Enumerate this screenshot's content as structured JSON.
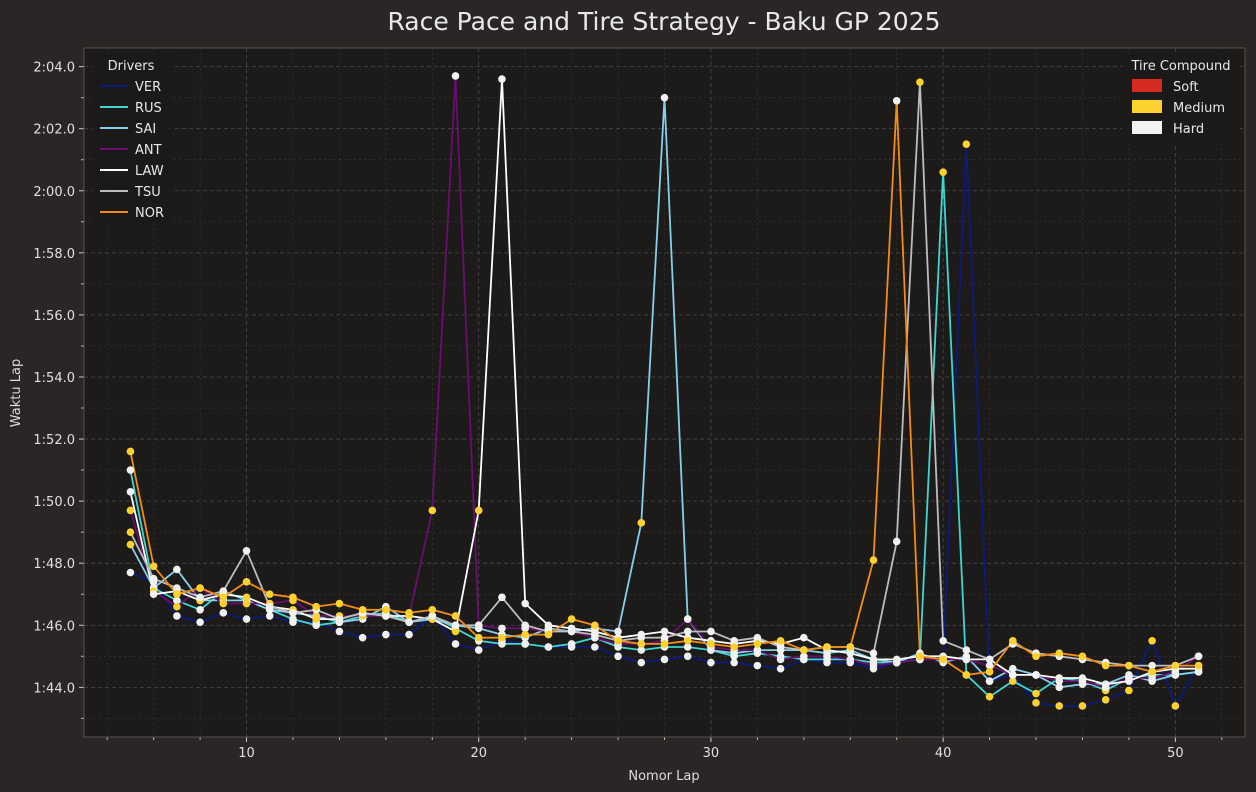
{
  "chart_data": {
    "type": "line",
    "title": "Race Pace and Tire Strategy - Baku GP 2025",
    "xlabel": "Nomor Lap",
    "ylabel": "Waktu Lap",
    "xlim": [
      3,
      53
    ],
    "ylim": [
      102.4,
      124.6
    ],
    "x_ticks": [
      10,
      20,
      30,
      40,
      50
    ],
    "y_ticks": [
      104,
      106,
      108,
      110,
      112,
      114,
      116,
      118,
      120,
      122,
      124
    ],
    "y_tick_labels": [
      "1:44.0",
      "1:46.0",
      "1:48.0",
      "1:50.0",
      "1:52.0",
      "1:54.0",
      "1:56.0",
      "1:58.0",
      "2:00.0",
      "2:02.0",
      "2:04.0"
    ],
    "grid": true,
    "legend_drivers": {
      "title": "Drivers",
      "position": "top-left"
    },
    "legend_tires": {
      "title": "Tire Compound",
      "position": "top-right"
    },
    "tire_compounds": [
      {
        "name": "Soft",
        "color": "#d62b20"
      },
      {
        "name": "Medium",
        "color": "#fdd12e"
      },
      {
        "name": "Hard",
        "color": "#f2f2f2"
      }
    ],
    "x": [
      5,
      6,
      7,
      8,
      9,
      10,
      11,
      12,
      13,
      14,
      15,
      16,
      17,
      18,
      19,
      20,
      21,
      22,
      23,
      24,
      25,
      26,
      27,
      28,
      29,
      30,
      31,
      32,
      33,
      34,
      35,
      36,
      37,
      38,
      39,
      40,
      41,
      42,
      43,
      44,
      45,
      46,
      47,
      48,
      49,
      50,
      51
    ],
    "series": [
      {
        "name": "VER",
        "color": "#0b1a7c",
        "values": [
          107.7,
          107.4,
          106.3,
          106.1,
          106.4,
          106.2,
          106.3,
          106.1,
          106.1,
          105.8,
          105.6,
          105.7,
          105.7,
          106.3,
          105.4,
          105.2,
          105.5,
          105.4,
          105.3,
          105.3,
          105.3,
          105.0,
          104.8,
          104.9,
          105.0,
          104.8,
          104.8,
          104.7,
          104.6,
          104.9,
          104.8,
          104.8,
          104.6,
          104.8,
          104.9,
          104.9,
          121.5,
          104.2,
          104.4,
          103.5,
          103.4,
          103.4,
          103.6,
          103.9,
          105.5,
          103.4,
          104.7
        ],
        "tires": [
          "H",
          "H",
          "H",
          "H",
          "H",
          "H",
          "H",
          "H",
          "H",
          "H",
          "H",
          "H",
          "H",
          "H",
          "H",
          "H",
          "H",
          "H",
          "H",
          "H",
          "H",
          "H",
          "H",
          "H",
          "H",
          "H",
          "H",
          "H",
          "H",
          "H",
          "H",
          "H",
          "H",
          "H",
          "H",
          "H",
          "M",
          "H",
          "M",
          "M",
          "M",
          "M",
          "M",
          "M",
          "M",
          "M",
          "M"
        ]
      },
      {
        "name": "RUS",
        "color": "#40d6cf",
        "values": [
          111.0,
          107.2,
          106.8,
          106.5,
          107.1,
          106.8,
          106.5,
          106.2,
          106.0,
          106.1,
          106.3,
          106.4,
          106.1,
          106.3,
          105.9,
          105.5,
          105.4,
          105.4,
          105.3,
          105.4,
          105.6,
          105.3,
          105.2,
          105.3,
          105.3,
          105.2,
          105.0,
          105.1,
          105.0,
          104.9,
          104.9,
          104.9,
          104.8,
          104.8,
          104.9,
          120.6,
          104.4,
          103.7,
          104.2,
          103.8,
          104.3,
          104.2,
          103.9,
          104.3,
          104.4,
          104.4,
          104.5
        ],
        "tires": [
          "H",
          "H",
          "H",
          "H",
          "H",
          "H",
          "H",
          "H",
          "H",
          "H",
          "H",
          "H",
          "H",
          "H",
          "H",
          "H",
          "H",
          "H",
          "H",
          "H",
          "H",
          "H",
          "H",
          "H",
          "H",
          "H",
          "H",
          "H",
          "H",
          "H",
          "H",
          "H",
          "H",
          "H",
          "H",
          "M",
          "M",
          "M",
          "M",
          "M",
          "M",
          "M",
          "M",
          "H",
          "H",
          "H",
          "H"
        ]
      },
      {
        "name": "SAI",
        "color": "#87ceeb",
        "values": [
          108.6,
          107.2,
          107.8,
          106.8,
          106.8,
          106.8,
          106.5,
          106.4,
          106.3,
          106.1,
          106.2,
          106.6,
          106.1,
          106.2,
          106.0,
          105.9,
          105.7,
          105.6,
          105.9,
          105.8,
          105.9,
          105.8,
          109.3,
          123.0,
          106.2,
          105.2,
          105.1,
          105.2,
          105.2,
          105.2,
          105.1,
          105.2,
          104.9,
          104.8,
          105.1,
          104.8,
          105.0,
          104.2,
          104.6,
          104.4,
          104.0,
          104.1,
          104.1,
          104.4,
          104.2,
          104.4,
          104.5
        ],
        "tires": [
          "M",
          "H",
          "H",
          "H",
          "H",
          "H",
          "H",
          "H",
          "H",
          "H",
          "H",
          "H",
          "H",
          "H",
          "H",
          "H",
          "H",
          "H",
          "H",
          "H",
          "H",
          "H",
          "M",
          "H",
          "H",
          "H",
          "H",
          "H",
          "H",
          "H",
          "H",
          "H",
          "H",
          "H",
          "H",
          "H",
          "H",
          "H",
          "H",
          "H",
          "H",
          "H",
          "H",
          "H",
          "H",
          "H",
          "H"
        ]
      },
      {
        "name": "ANT",
        "color": "#6a0e6f",
        "values": [
          109.7,
          107.1,
          106.6,
          107.2,
          106.7,
          106.7,
          106.7,
          106.8,
          106.3,
          106.3,
          106.3,
          106.3,
          106.3,
          109.7,
          123.7,
          106.0,
          105.9,
          105.9,
          105.8,
          105.8,
          105.6,
          105.4,
          105.4,
          105.5,
          106.2,
          105.3,
          105.2,
          105.2,
          104.9,
          105.0,
          105.0,
          104.9,
          104.7,
          104.8,
          104.9,
          104.9,
          104.9,
          104.7,
          104.4,
          104.4,
          104.2,
          104.2,
          104.0,
          104.3,
          104.3,
          104.5,
          105.0
        ],
        "tires": [
          "M",
          "M",
          "M",
          "M",
          "M",
          "M",
          "M",
          "M",
          "M",
          "M",
          "M",
          "M",
          "M",
          "M",
          "H",
          "H",
          "H",
          "H",
          "H",
          "H",
          "H",
          "H",
          "H",
          "H",
          "H",
          "H",
          "H",
          "H",
          "H",
          "H",
          "H",
          "H",
          "H",
          "H",
          "H",
          "H",
          "H",
          "H",
          "H",
          "H",
          "H",
          "H",
          "H",
          "H",
          "H",
          "H",
          "H"
        ]
      },
      {
        "name": "LAW",
        "color": "#ffffff",
        "values": [
          110.3,
          107.0,
          107.1,
          106.8,
          107.0,
          106.9,
          106.6,
          106.5,
          106.2,
          106.2,
          106.4,
          106.3,
          106.3,
          106.2,
          105.8,
          109.7,
          123.6,
          106.7,
          106.0,
          105.9,
          105.8,
          105.6,
          105.7,
          105.8,
          105.6,
          105.5,
          105.4,
          105.5,
          105.4,
          105.6,
          105.2,
          105.1,
          104.9,
          104.9,
          105.0,
          105.0,
          104.9,
          104.9,
          104.4,
          104.4,
          104.3,
          104.3,
          104.1,
          104.2,
          104.5,
          104.6,
          104.6
        ],
        "tires": [
          "H",
          "H",
          "M",
          "M",
          "M",
          "M",
          "M",
          "M",
          "M",
          "M",
          "M",
          "M",
          "M",
          "M",
          "M",
          "M",
          "H",
          "H",
          "H",
          "H",
          "H",
          "H",
          "H",
          "H",
          "H",
          "H",
          "H",
          "H",
          "H",
          "H",
          "H",
          "H",
          "H",
          "H",
          "H",
          "H",
          "H",
          "H",
          "H",
          "H",
          "H",
          "H",
          "H",
          "H",
          "H",
          "H",
          "H"
        ]
      },
      {
        "name": "TSU",
        "color": "#bdbdbd",
        "values": [
          109.0,
          107.5,
          107.2,
          106.9,
          107.1,
          108.4,
          106.6,
          106.4,
          106.5,
          106.2,
          106.4,
          106.3,
          106.1,
          106.3,
          106.0,
          106.0,
          106.9,
          106.0,
          105.8,
          105.8,
          105.7,
          105.5,
          105.6,
          105.6,
          105.8,
          105.8,
          105.5,
          105.6,
          105.3,
          105.2,
          105.3,
          105.3,
          105.1,
          108.7,
          123.5,
          105.5,
          105.2,
          104.9,
          105.4,
          105.1,
          105.0,
          104.9,
          104.8,
          104.7,
          104.7,
          104.7,
          105.0
        ],
        "tires": [
          "M",
          "H",
          "H",
          "H",
          "H",
          "H",
          "H",
          "H",
          "H",
          "H",
          "H",
          "H",
          "H",
          "H",
          "H",
          "H",
          "H",
          "H",
          "H",
          "H",
          "H",
          "H",
          "H",
          "H",
          "H",
          "H",
          "H",
          "H",
          "H",
          "H",
          "H",
          "H",
          "H",
          "H",
          "M",
          "H",
          "H",
          "H",
          "H",
          "H",
          "H",
          "H",
          "H",
          "H",
          "H",
          "H",
          "H"
        ]
      },
      {
        "name": "NOR",
        "color": "#f28c12",
        "values": [
          111.6,
          107.9,
          107.0,
          107.2,
          106.9,
          107.4,
          107.0,
          106.9,
          106.6,
          106.7,
          106.5,
          106.5,
          106.4,
          106.5,
          106.3,
          105.6,
          105.6,
          105.7,
          105.7,
          106.2,
          106.0,
          105.5,
          105.4,
          105.4,
          105.5,
          105.4,
          105.3,
          105.4,
          105.5,
          105.2,
          105.3,
          105.3,
          108.1,
          122.9,
          105.0,
          104.9,
          104.4,
          104.5,
          105.5,
          105.0,
          105.1,
          105.0,
          104.7,
          104.7,
          104.5,
          104.7,
          104.7
        ],
        "tires": [
          "M",
          "M",
          "M",
          "M",
          "M",
          "M",
          "M",
          "M",
          "M",
          "M",
          "M",
          "M",
          "M",
          "M",
          "M",
          "M",
          "M",
          "M",
          "M",
          "M",
          "M",
          "M",
          "M",
          "M",
          "M",
          "M",
          "M",
          "M",
          "M",
          "M",
          "M",
          "M",
          "M",
          "H",
          "M",
          "M",
          "M",
          "M",
          "M",
          "M",
          "M",
          "M",
          "M",
          "M",
          "M",
          "M",
          "M"
        ]
      }
    ]
  }
}
